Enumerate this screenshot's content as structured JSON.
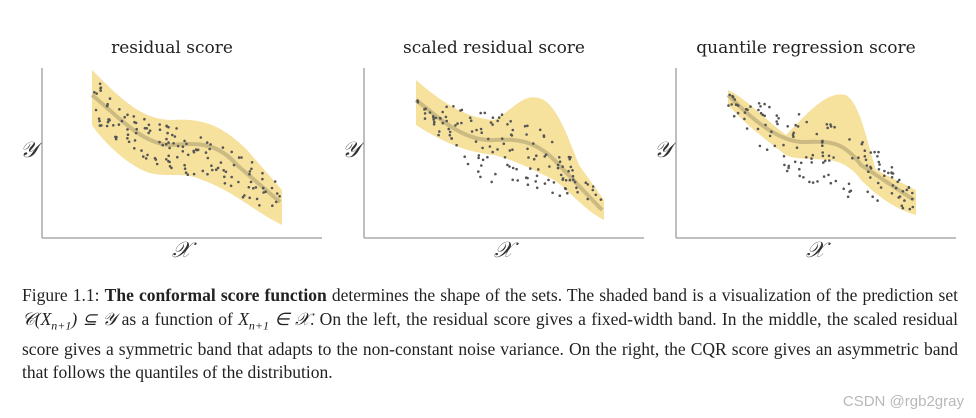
{
  "figure": {
    "panels": [
      {
        "id": "residual",
        "title": "residual score",
        "ylabel": "𝒴",
        "xlabel": "𝒳",
        "band": "fixed"
      },
      {
        "id": "scaled",
        "title": "scaled residual score",
        "ylabel": "𝒴",
        "xlabel": "𝒳",
        "band": "symmetric"
      },
      {
        "id": "cqr",
        "title": "quantile regression score",
        "ylabel": "𝒴",
        "xlabel": "𝒳",
        "band": "asymmetric"
      }
    ],
    "colors": {
      "band": "#f5dc8c",
      "curve": "#b8a978",
      "points": "#555555",
      "axis": "#aaaaaa"
    }
  },
  "caption": {
    "label": "Figure 1.1:",
    "bold": "The conformal score function",
    "part1": " determines the shape of the sets.  The shaded band is a visualization of the prediction set ",
    "set_expr": "𝒞(X",
    "set_sub": "n+1",
    "set_rest": ") ⊆ 𝒴",
    "part2": " as a function of ",
    "var_expr": "X",
    "var_sub": "n+1",
    "var_rest": " ∈ 𝒳",
    "part3": ". On the left, the residual score gives a fixed-width band.  In the middle, the scaled residual score gives a symmetric band that adapts to the non-constant noise variance. On the right, the CQR score gives an asymmetric band that follows the quantiles of the distribution."
  },
  "watermark": "CSDN @rgb2gray"
}
